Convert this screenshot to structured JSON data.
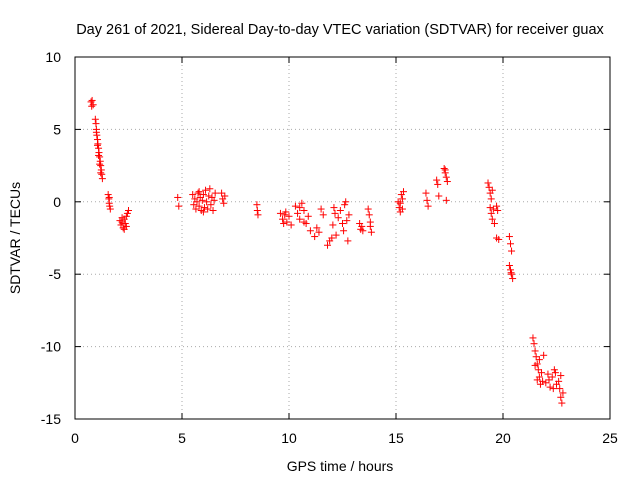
{
  "chart_data": {
    "type": "scatter",
    "title": "Day 261 of 2021, Sidereal Day-to-day VTEC variation (SDTVAR) for receiver guax",
    "xlabel": "GPS time / hours",
    "ylabel": "SDTVAR / TECUs",
    "xlim": [
      0,
      25
    ],
    "ylim": [
      -15,
      10
    ],
    "xticks": [
      0,
      5,
      10,
      15,
      20,
      25
    ],
    "yticks": [
      -15,
      -10,
      -5,
      0,
      5,
      10
    ],
    "grid": true,
    "marker": "+",
    "series": [
      {
        "name": "SDTVAR",
        "color": "#ff0000",
        "points": [
          [
            0.75,
            6.9
          ],
          [
            0.78,
            6.6
          ],
          [
            0.8,
            7.0
          ],
          [
            0.85,
            6.7
          ],
          [
            0.95,
            5.7
          ],
          [
            0.98,
            5.4
          ],
          [
            1.0,
            5.0
          ],
          [
            1.02,
            4.6
          ],
          [
            1.05,
            4.3
          ],
          [
            1.07,
            4.0
          ],
          [
            1.1,
            3.7
          ],
          [
            1.12,
            3.4
          ],
          [
            1.15,
            3.1
          ],
          [
            1.18,
            2.8
          ],
          [
            1.2,
            2.5
          ],
          [
            1.23,
            2.2
          ],
          [
            1.25,
            1.9
          ],
          [
            1.28,
            1.6
          ],
          [
            1.0,
            4.8
          ],
          [
            1.05,
            3.9
          ],
          [
            1.1,
            3.2
          ],
          [
            1.15,
            2.6
          ],
          [
            1.2,
            2.0
          ],
          [
            1.55,
            0.5
          ],
          [
            1.58,
            0.2
          ],
          [
            1.6,
            -0.1
          ],
          [
            1.62,
            -0.3
          ],
          [
            1.65,
            -0.5
          ],
          [
            1.6,
            0.3
          ],
          [
            2.1,
            -1.3
          ],
          [
            2.15,
            -1.6
          ],
          [
            2.2,
            -1.4
          ],
          [
            2.25,
            -1.8
          ],
          [
            2.3,
            -1.2
          ],
          [
            2.35,
            -1.5
          ],
          [
            2.4,
            -1.0
          ],
          [
            2.45,
            -0.8
          ],
          [
            2.5,
            -0.6
          ],
          [
            2.4,
            -1.7
          ],
          [
            2.3,
            -1.9
          ],
          [
            2.2,
            -1.1
          ],
          [
            4.8,
            0.3
          ],
          [
            4.85,
            -0.3
          ],
          [
            5.5,
            0.5
          ],
          [
            5.55,
            -0.2
          ],
          [
            5.6,
            0.2
          ],
          [
            5.65,
            -0.5
          ],
          [
            5.7,
            0.0
          ],
          [
            5.75,
            0.6
          ],
          [
            5.8,
            -0.3
          ],
          [
            5.85,
            0.3
          ],
          [
            5.9,
            -0.6
          ],
          [
            5.95,
            0.1
          ],
          [
            6.0,
            0.5
          ],
          [
            6.05,
            -0.4
          ],
          [
            6.1,
            0.8
          ],
          [
            6.15,
            0.0
          ],
          [
            6.2,
            -0.5
          ],
          [
            6.25,
            0.4
          ],
          [
            6.3,
            0.9
          ],
          [
            6.35,
            -0.2
          ],
          [
            6.4,
            0.3
          ],
          [
            6.45,
            -0.6
          ],
          [
            6.5,
            0.1
          ],
          [
            6.55,
            0.6
          ],
          [
            6.0,
            -0.7
          ],
          [
            5.8,
            0.7
          ],
          [
            6.85,
            0.6
          ],
          [
            6.9,
            0.2
          ],
          [
            6.95,
            -0.1
          ],
          [
            7.0,
            0.4
          ],
          [
            8.5,
            -0.2
          ],
          [
            8.52,
            -0.6
          ],
          [
            8.55,
            -0.9
          ],
          [
            9.6,
            -0.8
          ],
          [
            9.7,
            -1.2
          ],
          [
            9.8,
            -0.9
          ],
          [
            9.9,
            -1.4
          ],
          [
            10.0,
            -1.0
          ],
          [
            10.1,
            -1.6
          ],
          [
            9.75,
            -1.5
          ],
          [
            9.85,
            -0.7
          ],
          [
            10.3,
            -0.3
          ],
          [
            10.4,
            -0.8
          ],
          [
            10.5,
            -1.2
          ],
          [
            10.6,
            -0.1
          ],
          [
            10.7,
            -0.6
          ],
          [
            10.8,
            -1.5
          ],
          [
            10.9,
            -1.0
          ],
          [
            10.5,
            -0.4
          ],
          [
            10.7,
            -1.4
          ],
          [
            11.0,
            -2.0
          ],
          [
            11.2,
            -2.4
          ],
          [
            11.4,
            -2.1
          ],
          [
            11.5,
            -0.5
          ],
          [
            11.6,
            -0.9
          ],
          [
            11.3,
            -1.8
          ],
          [
            11.8,
            -3.0
          ],
          [
            11.9,
            -2.7
          ],
          [
            12.0,
            -2.5
          ],
          [
            12.05,
            -1.6
          ],
          [
            12.1,
            -0.4
          ],
          [
            12.15,
            -0.8
          ],
          [
            12.2,
            -2.3
          ],
          [
            12.3,
            -1.1
          ],
          [
            12.4,
            -0.6
          ],
          [
            12.5,
            -1.5
          ],
          [
            12.55,
            -2.0
          ],
          [
            12.6,
            -0.2
          ],
          [
            12.65,
            0.0
          ],
          [
            12.7,
            -1.3
          ],
          [
            12.75,
            -2.7
          ],
          [
            12.8,
            -0.9
          ],
          [
            13.3,
            -1.5
          ],
          [
            13.35,
            -1.9
          ],
          [
            13.4,
            -1.7
          ],
          [
            13.45,
            -2.0
          ],
          [
            13.7,
            -0.5
          ],
          [
            13.75,
            -0.9
          ],
          [
            13.8,
            -1.4
          ],
          [
            13.85,
            -2.1
          ],
          [
            13.8,
            -1.7
          ],
          [
            15.1,
            0.0
          ],
          [
            15.15,
            -0.4
          ],
          [
            15.2,
            -0.7
          ],
          [
            15.25,
            0.5
          ],
          [
            15.3,
            0.2
          ],
          [
            15.35,
            0.7
          ],
          [
            15.2,
            -0.1
          ],
          [
            15.3,
            -0.5
          ],
          [
            16.4,
            0.6
          ],
          [
            16.45,
            0.1
          ],
          [
            16.5,
            -0.3
          ],
          [
            16.9,
            1.5
          ],
          [
            16.95,
            1.2
          ],
          [
            17.0,
            0.4
          ],
          [
            17.25,
            2.3
          ],
          [
            17.3,
            2.0
          ],
          [
            17.35,
            1.7
          ],
          [
            17.4,
            1.4
          ],
          [
            17.3,
            2.2
          ],
          [
            17.35,
            0.1
          ],
          [
            19.3,
            1.3
          ],
          [
            19.35,
            1.0
          ],
          [
            19.4,
            0.6
          ],
          [
            19.45,
            0.2
          ],
          [
            19.4,
            -0.4
          ],
          [
            19.45,
            -0.8
          ],
          [
            19.5,
            -1.2
          ],
          [
            19.55,
            -0.5
          ],
          [
            19.6,
            -1.5
          ],
          [
            19.5,
            0.8
          ],
          [
            19.7,
            -0.3
          ],
          [
            19.75,
            -0.6
          ],
          [
            19.7,
            -2.5
          ],
          [
            19.8,
            -2.6
          ],
          [
            20.3,
            -2.4
          ],
          [
            20.35,
            -2.9
          ],
          [
            20.4,
            -3.4
          ],
          [
            20.3,
            -4.4
          ],
          [
            20.35,
            -4.7
          ],
          [
            20.4,
            -5.0
          ],
          [
            20.45,
            -5.3
          ],
          [
            20.38,
            -4.9
          ],
          [
            21.4,
            -9.4
          ],
          [
            21.45,
            -9.8
          ],
          [
            21.5,
            -10.3
          ],
          [
            21.55,
            -10.7
          ],
          [
            21.6,
            -11.2
          ],
          [
            21.65,
            -11.6
          ],
          [
            21.7,
            -12.1
          ],
          [
            21.75,
            -12.6
          ],
          [
            21.5,
            -11.3
          ],
          [
            21.6,
            -12.3
          ],
          [
            21.7,
            -10.9
          ],
          [
            21.8,
            -11.8
          ],
          [
            21.85,
            -12.4
          ],
          [
            21.9,
            -10.6
          ],
          [
            22.0,
            -12.5
          ],
          [
            22.1,
            -11.9
          ],
          [
            22.2,
            -12.8
          ],
          [
            22.3,
            -12.1
          ],
          [
            22.4,
            -11.6
          ],
          [
            22.5,
            -12.6
          ],
          [
            22.15,
            -12.3
          ],
          [
            22.35,
            -12.9
          ],
          [
            22.45,
            -11.8
          ],
          [
            22.6,
            -12.4
          ],
          [
            22.65,
            -12.9
          ],
          [
            22.7,
            -13.5
          ],
          [
            22.75,
            -13.9
          ],
          [
            22.8,
            -13.2
          ],
          [
            22.7,
            -12.0
          ]
        ]
      }
    ]
  }
}
